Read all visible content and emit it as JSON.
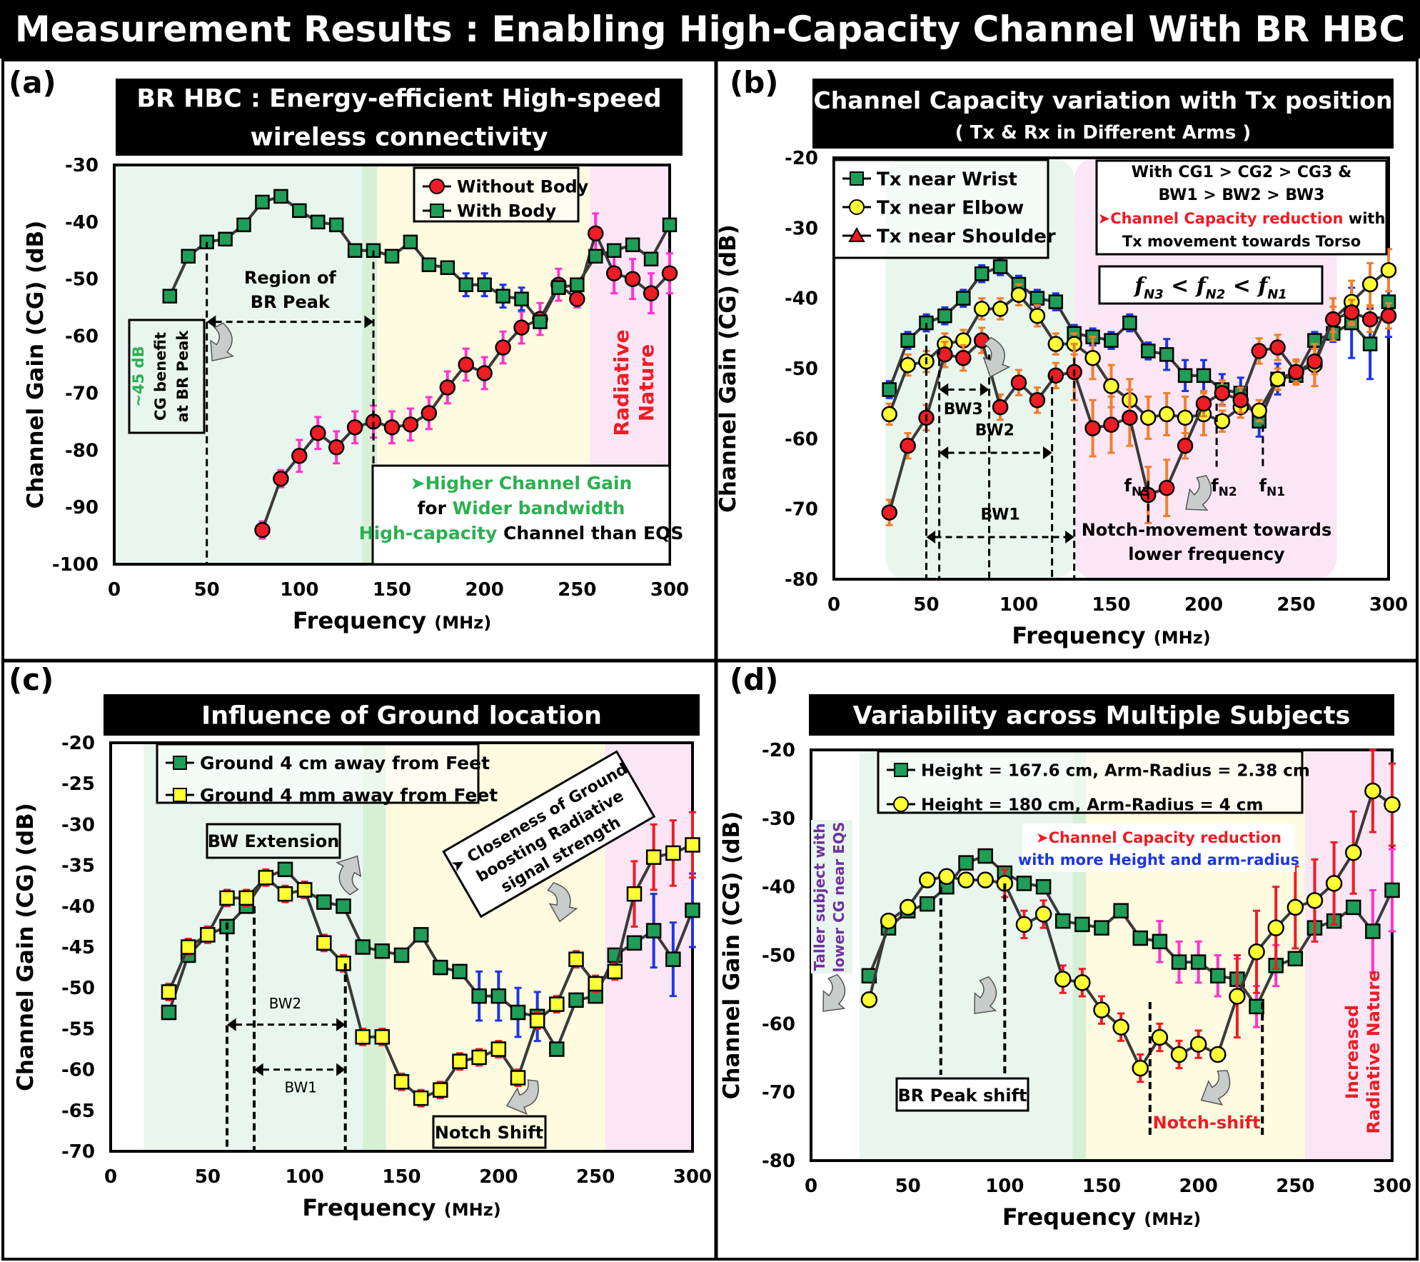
{
  "page_title": "Measurement Results : Enabling High-Capacity Channel With BR HBC",
  "colors": {
    "green_marker": "#1e9e57",
    "red_marker": "#ee1c24",
    "yellow_marker": "#ffff33",
    "magenta_err": "#ff33cc",
    "blue_err": "#1b35e6",
    "orange_err": "#f07f2c",
    "region_green": "#e8f6ee",
    "region_yellow": "#fffbe0",
    "region_pink": "#fbe6f6",
    "accent_green": "#2bb050"
  },
  "chart_data": [
    {
      "type": "line",
      "panel_label": "(a)",
      "title": "BR HBC : Energy-efficient High-speed wireless connectivity",
      "title_lines": [
        "BR HBC : Energy-efficient High-speed",
        "wireless connectivity"
      ],
      "xlabel": "Frequency",
      "xunit": "(MHz)",
      "ylabel": "Channel Gain (CG) (dB)",
      "xlim": [
        0,
        300
      ],
      "ylim": [
        -100,
        -30
      ],
      "xticks": [
        0,
        50,
        100,
        150,
        200,
        250,
        300
      ],
      "yticks": [
        -30,
        -40,
        -50,
        -60,
        -70,
        -80,
        -90,
        -100
      ],
      "series": [
        {
          "name": "Without Body",
          "marker": "circle",
          "color": "#ee1c24",
          "x": [
            80,
            90,
            100,
            110,
            120,
            130,
            140,
            150,
            160,
            170,
            180,
            190,
            200,
            210,
            220,
            230,
            240,
            250,
            260,
            270,
            280,
            290,
            300
          ],
          "y": [
            -94,
            -85,
            -81,
            -77,
            -79.5,
            -76,
            -75,
            -76,
            -75.5,
            -73.5,
            -69,
            -65,
            -66.5,
            -62,
            -58.5,
            -57,
            -51,
            -53.5,
            -42,
            -49,
            -50,
            -52.5,
            -49
          ]
        },
        {
          "name": "With Body",
          "marker": "square",
          "color": "#1e9e57",
          "x": [
            30,
            40,
            50,
            60,
            70,
            80,
            90,
            100,
            110,
            120,
            130,
            140,
            150,
            160,
            170,
            180,
            190,
            200,
            210,
            220,
            230,
            240,
            250,
            260,
            270,
            280,
            290,
            300
          ],
          "y": [
            -53,
            -46,
            -43.5,
            -43,
            -40.5,
            -36.5,
            -35.5,
            -38,
            -40,
            -40.5,
            -45,
            -45,
            -46,
            -43.5,
            -47.5,
            -48,
            -51,
            -51,
            -53,
            -53.5,
            -57.5,
            -51.5,
            -51,
            -46,
            -45,
            -44,
            -46.5,
            -40.5
          ]
        }
      ],
      "annotations": {
        "region_label": [
          "Region of",
          "BR Peak"
        ],
        "cg_benefit": [
          "~45 dB",
          "CG benefit",
          "at BR Peak"
        ],
        "radiative": [
          "Radiative",
          "Nature"
        ],
        "box": [
          "➤Higher Channel Gain",
          "for Wider bandwidth",
          "High-capacity Channel than EQS"
        ],
        "box_segments": [
          [
            "➤Higher Channel Gain"
          ],
          [
            "for ",
            "Wider bandwidth"
          ],
          [
            "High-capacity",
            " Channel than EQS"
          ]
        ]
      }
    },
    {
      "type": "line",
      "panel_label": "(b)",
      "title": "Channel Capacity variation with Tx position",
      "subtitle": "( Tx & Rx in Different Arms )",
      "xlabel": "Frequency",
      "xunit": "(MHz)",
      "ylabel": "Channel Gain (CG) (dB)",
      "xlim": [
        0,
        300
      ],
      "ylim": [
        -80,
        -20
      ],
      "xticks": [
        0,
        50,
        100,
        150,
        200,
        250,
        300
      ],
      "yticks": [
        -20,
        -30,
        -40,
        -50,
        -60,
        -70,
        -80
      ],
      "series": [
        {
          "name": "Tx near Wrist",
          "marker": "square",
          "color": "#1e9e57",
          "x": [
            30,
            40,
            50,
            60,
            70,
            80,
            90,
            100,
            110,
            120,
            130,
            140,
            150,
            160,
            170,
            180,
            190,
            200,
            210,
            220,
            230,
            240,
            250,
            260,
            270,
            280,
            290,
            300
          ],
          "y": [
            -53,
            -46,
            -43.5,
            -42.5,
            -40,
            -36.5,
            -35.5,
            -38,
            -40,
            -40.5,
            -45,
            -45.5,
            -46,
            -43.5,
            -47.5,
            -48,
            -51,
            -51,
            -53,
            -53.5,
            -57.5,
            -51.5,
            -51,
            -46,
            -45,
            -43.5,
            -46.5,
            -40.5
          ]
        },
        {
          "name": "Tx near Elbow",
          "marker": "circle",
          "color": "#ffff33",
          "x": [
            30,
            40,
            50,
            60,
            70,
            80,
            90,
            100,
            110,
            120,
            130,
            140,
            150,
            160,
            170,
            180,
            190,
            200,
            210,
            220,
            230,
            240,
            250,
            260,
            270,
            280,
            290,
            300
          ],
          "y": [
            -56.5,
            -49.5,
            -49,
            -46.5,
            -46,
            -41.5,
            -41.5,
            -39.5,
            -42.5,
            -46.5,
            -46.5,
            -48.5,
            -52.5,
            -54.5,
            -57,
            -56.5,
            -57,
            -56.5,
            -57.5,
            -55.5,
            -56,
            -51.5,
            -50.5,
            -49.5,
            -43,
            -40.5,
            -38,
            -36
          ]
        },
        {
          "name": "Tx near Shoulder",
          "marker": "circle",
          "color": "#ee1c24",
          "x": [
            30,
            40,
            50,
            60,
            70,
            80,
            90,
            100,
            110,
            120,
            130,
            140,
            150,
            160,
            170,
            180,
            190,
            200,
            210,
            220,
            230,
            240,
            250,
            260,
            270,
            280,
            290,
            300
          ],
          "y": [
            -70.5,
            -61,
            -57,
            -48,
            -48.5,
            -46,
            -55.5,
            -52,
            -54.5,
            -51,
            -50.5,
            -58.5,
            -58,
            -57,
            -68,
            -67,
            -61,
            -55,
            -53.5,
            -54.5,
            -47.5,
            -47,
            -50.5,
            -49,
            -43,
            -42,
            -43,
            -42.5
          ]
        }
      ],
      "annotations": {
        "cond": [
          "With CG1 > CG2 > CG3 &",
          "BW1 > BW2 > BW3"
        ],
        "reduction": [
          "➤Channel Capacity reduction",
          " with",
          "Tx movement towards Torso"
        ],
        "formula": [
          "f",
          "N3",
          " < ",
          "f",
          "N2",
          " < ",
          "f",
          "N1"
        ],
        "bw": [
          "BW3",
          "BW2",
          "BW1"
        ],
        "notch": [
          [
            "f",
            "N3"
          ],
          [
            "f",
            "N2"
          ],
          [
            "f",
            "N1"
          ]
        ],
        "notch_text": [
          "Notch-movement towards",
          "lower frequency"
        ]
      }
    },
    {
      "type": "line",
      "panel_label": "(c)",
      "title": "Influence of Ground location",
      "xlabel": "Frequency",
      "xunit": "(MHz)",
      "ylabel": "Channel Gain (CG) (dB)",
      "xlim": [
        0,
        300
      ],
      "ylim": [
        -70,
        -20
      ],
      "xticks": [
        0,
        50,
        100,
        150,
        200,
        250,
        300
      ],
      "yticks": [
        -20,
        -25,
        -30,
        -35,
        -40,
        -45,
        -50,
        -55,
        -60,
        -65,
        -70
      ],
      "series": [
        {
          "name": "Ground 4 cm away from Feet",
          "marker": "square",
          "color": "#1e9e57",
          "x": [
            30,
            40,
            50,
            60,
            70,
            80,
            90,
            100,
            110,
            120,
            130,
            140,
            150,
            160,
            170,
            180,
            190,
            200,
            210,
            220,
            230,
            240,
            250,
            260,
            270,
            280,
            290,
            300
          ],
          "y": [
            -53,
            -46,
            -43.5,
            -42.5,
            -40,
            -36.5,
            -35.5,
            -38,
            -39.5,
            -40,
            -45,
            -45.5,
            -46,
            -43.5,
            -47.5,
            -48,
            -51,
            -51,
            -53,
            -53.5,
            -57.5,
            -51.5,
            -51,
            -46,
            -44.5,
            -43,
            -46.5,
            -40.5
          ]
        },
        {
          "name": "Ground 4 mm away from Feet",
          "marker": "square",
          "color": "#ffff33",
          "x": [
            30,
            40,
            50,
            60,
            70,
            80,
            90,
            100,
            110,
            120,
            130,
            140,
            150,
            160,
            170,
            180,
            190,
            200,
            210,
            220,
            230,
            240,
            250,
            260,
            270,
            280,
            290,
            300
          ],
          "y": [
            -50.5,
            -45,
            -43.5,
            -39,
            -39,
            -36.5,
            -38.5,
            -38,
            -44.5,
            -47,
            -56,
            -56,
            -61.5,
            -63.5,
            -62.5,
            -59,
            -58.5,
            -57.5,
            -61,
            -54,
            -52,
            -46.5,
            -49.5,
            -48,
            -38.5,
            -34,
            -33.5,
            -32.5
          ]
        }
      ],
      "annotations": {
        "bw_ext": "BW Extension",
        "closeness": [
          "Closeness of Ground",
          "boosting Radiative",
          "signal strength"
        ],
        "notch": "Notch Shift",
        "bw": [
          "BW2",
          "BW1"
        ]
      }
    },
    {
      "type": "line",
      "panel_label": "(d)",
      "title": "Variability across Multiple Subjects",
      "xlabel": "Frequency",
      "xunit": "(MHz)",
      "ylabel": "Channel Gain (CG) (dB)",
      "xlim": [
        0,
        300
      ],
      "ylim": [
        -80,
        -20
      ],
      "xticks": [
        0,
        50,
        100,
        150,
        200,
        250,
        300
      ],
      "yticks": [
        -20,
        -30,
        -40,
        -50,
        -60,
        -70,
        -80
      ],
      "series": [
        {
          "name": "Height = 167.6 cm, Arm-Radius = 2.38 cm",
          "marker": "square",
          "color": "#1e9e57",
          "x": [
            30,
            40,
            50,
            60,
            70,
            80,
            90,
            100,
            110,
            120,
            130,
            140,
            150,
            160,
            170,
            180,
            190,
            200,
            210,
            220,
            230,
            240,
            250,
            260,
            270,
            280,
            290,
            300
          ],
          "y": [
            -53,
            -46,
            -43.5,
            -42.5,
            -40,
            -36.5,
            -35.5,
            -38,
            -39.5,
            -40,
            -45,
            -45.5,
            -46,
            -43.5,
            -47.5,
            -48,
            -51,
            -51,
            -53,
            -53.5,
            -57.5,
            -51.5,
            -50.5,
            -46,
            -45,
            -43,
            -46.5,
            -40.5
          ]
        },
        {
          "name": "Height = 180 cm, Arm-Radius = 4 cm",
          "marker": "circle",
          "color": "#ffff33",
          "x": [
            30,
            40,
            50,
            60,
            70,
            80,
            90,
            100,
            110,
            120,
            130,
            140,
            150,
            160,
            170,
            180,
            190,
            200,
            210,
            220,
            230,
            240,
            250,
            260,
            270,
            280,
            290,
            300
          ],
          "y": [
            -56.5,
            -45,
            -43,
            -39,
            -38.5,
            -39,
            -39,
            -39.5,
            -45.5,
            -44,
            -53.5,
            -54,
            -58,
            -60.5,
            -66.5,
            -62,
            -64.5,
            -63,
            -64.5,
            -56,
            -49.5,
            -46,
            -43,
            -42,
            -39.5,
            -35,
            -26,
            -28
          ]
        }
      ],
      "annotations": {
        "taller": [
          "Taller subject with",
          "lower CG near EQS"
        ],
        "reduction": [
          "➤Channel Capacity reduction",
          "with more Height and arm-radius"
        ],
        "br_peak": "BR Peak shift",
        "notch": "Notch-shift",
        "radiative": [
          "Increased",
          "Radiative Nature"
        ]
      }
    }
  ]
}
